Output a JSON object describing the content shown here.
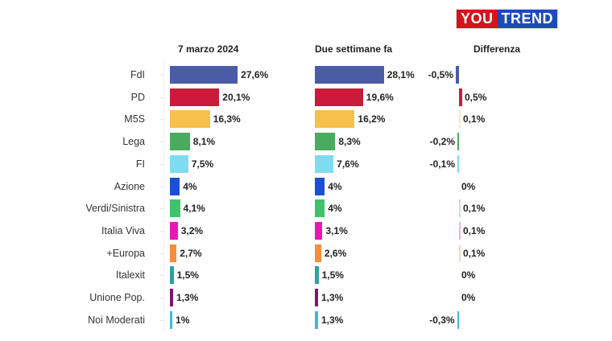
{
  "logo": {
    "you": "YOU",
    "trend": "TREND"
  },
  "headers": {
    "col1": "7 marzo 2024",
    "col2": "Due settimane fa",
    "col3": "Differenza"
  },
  "rows": [
    {
      "party": "FdI",
      "now": "27,6%",
      "prev": "28,1%",
      "diff": "-0,5%"
    },
    {
      "party": "PD",
      "now": "20,1%",
      "prev": "19,6%",
      "diff": "0,5%"
    },
    {
      "party": "M5S",
      "now": "16,3%",
      "prev": "16,2%",
      "diff": "0,1%"
    },
    {
      "party": "Lega",
      "now": "8,1%",
      "prev": "8,3%",
      "diff": "-0,2%"
    },
    {
      "party": "FI",
      "now": "7,5%",
      "prev": "7,6%",
      "diff": "-0,1%"
    },
    {
      "party": "Azione",
      "now": "4%",
      "prev": "4%",
      "diff": "0%"
    },
    {
      "party": "Verdi/Sinistra",
      "now": "4,1%",
      "prev": "4%",
      "diff": "0,1%"
    },
    {
      "party": "Italia Viva",
      "now": "3,2%",
      "prev": "3,1%",
      "diff": "0,1%"
    },
    {
      "party": "+Europa",
      "now": "2,7%",
      "prev": "2,6%",
      "diff": "0,1%"
    },
    {
      "party": "Italexit",
      "now": "1,5%",
      "prev": "1,5%",
      "diff": "0%"
    },
    {
      "party": "Unione Pop.",
      "now": "1,3%",
      "prev": "1,3%",
      "diff": "0%"
    },
    {
      "party": "Noi Moderati",
      "now": "1%",
      "prev": "1,3%",
      "diff": "-0,3%"
    }
  ],
  "colors": [
    "#4a5ca8",
    "#cc1a3a",
    "#f7c04a",
    "#4aab5e",
    "#7fdcef",
    "#1a4fd6",
    "#3cc46a",
    "#e619b4",
    "#f78d3a",
    "#2aa3a0",
    "#7a1a6e",
    "#3bbbd8"
  ],
  "chart_data": {
    "type": "bar",
    "orientation": "horizontal",
    "title": "",
    "categories": [
      "FdI",
      "PD",
      "M5S",
      "Lega",
      "FI",
      "Azione",
      "Verdi/Sinistra",
      "Italia Viva",
      "+Europa",
      "Italexit",
      "Unione Pop.",
      "Noi Moderati"
    ],
    "series": [
      {
        "name": "7 marzo 2024",
        "values": [
          27.6,
          20.1,
          16.3,
          8.1,
          7.5,
          4.0,
          4.1,
          3.2,
          2.7,
          1.5,
          1.3,
          1.0
        ]
      },
      {
        "name": "Due settimane fa",
        "values": [
          28.1,
          19.6,
          16.2,
          8.3,
          7.6,
          4.0,
          4.0,
          3.1,
          2.6,
          1.5,
          1.3,
          1.3
        ]
      },
      {
        "name": "Differenza",
        "values": [
          -0.5,
          0.5,
          0.1,
          -0.2,
          -0.1,
          0.0,
          0.1,
          0.1,
          0.1,
          0.0,
          0.0,
          -0.3
        ]
      }
    ],
    "value_format": "percent, comma decimal",
    "grid": false,
    "legend": "column headers",
    "source_logo": "YouTrend"
  }
}
